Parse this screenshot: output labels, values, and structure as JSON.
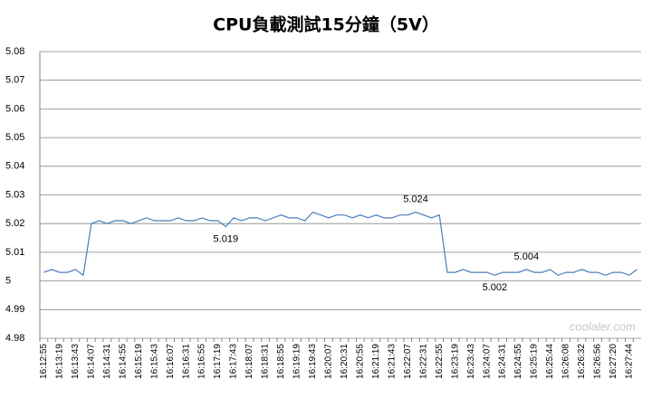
{
  "chart_data": {
    "type": "line",
    "title": "CPU負載測試15分鐘（5V）",
    "categories": [
      "16:12:55",
      null,
      "16:13:19",
      null,
      "16:13:43",
      null,
      "16:14:07",
      null,
      "16:14:31",
      null,
      "16:14:55",
      null,
      "16:15:19",
      null,
      "16:15:43",
      null,
      "16:16:07",
      null,
      "16:16:31",
      null,
      "16:16:55",
      null,
      "16:17:19",
      null,
      "16:17:43",
      null,
      "16:18:07",
      null,
      "16:18:31",
      null,
      "16:18:55",
      null,
      "16:19:19",
      null,
      "16:19:43",
      null,
      "16:20:07",
      null,
      "16:20:31",
      null,
      "16:20:55",
      null,
      "16:21:19",
      null,
      "16:21:43",
      null,
      "16:22:07",
      null,
      "16:22:31",
      null,
      "16:22:55",
      null,
      "16:23:19",
      null,
      "16:23:43",
      null,
      "16:24:07",
      null,
      "16:24:31",
      null,
      "16:24:55",
      null,
      "16:25:19",
      null,
      "16:25:44",
      null,
      "16:26:08",
      null,
      "16:26:32",
      null,
      "16:26:56",
      null,
      "16:27:20",
      null,
      "16:27:44",
      null
    ],
    "series": [
      {
        "color": "#4a7ebb",
        "values": [
          5.003,
          5.004,
          5.003,
          5.003,
          5.004,
          5.002,
          5.02,
          5.021,
          5.02,
          5.021,
          5.021,
          5.02,
          5.021,
          5.022,
          5.021,
          5.021,
          5.021,
          5.022,
          5.021,
          5.021,
          5.022,
          5.021,
          5.021,
          5.019,
          5.022,
          5.021,
          5.022,
          5.022,
          5.021,
          5.022,
          5.023,
          5.022,
          5.022,
          5.021,
          5.024,
          5.023,
          5.022,
          5.023,
          5.023,
          5.022,
          5.023,
          5.022,
          5.023,
          5.022,
          5.022,
          5.023,
          5.023,
          5.024,
          5.023,
          5.022,
          5.023,
          5.003,
          5.003,
          5.004,
          5.003,
          5.003,
          5.003,
          5.002,
          5.003,
          5.003,
          5.003,
          5.004,
          5.003,
          5.003,
          5.004,
          5.002,
          5.003,
          5.003,
          5.004,
          5.003,
          5.003,
          5.002,
          5.003,
          5.003,
          5.002,
          5.004
        ]
      }
    ],
    "labeled_points": [
      23,
      47,
      57,
      61
    ],
    "ylim": [
      4.98,
      5.08
    ],
    "yticks": [
      4.98,
      4.99,
      5,
      5.01,
      5.02,
      5.03,
      5.04,
      5.05,
      5.06,
      5.07,
      5.08
    ],
    "grid": true,
    "watermark": "coolaler.com"
  }
}
